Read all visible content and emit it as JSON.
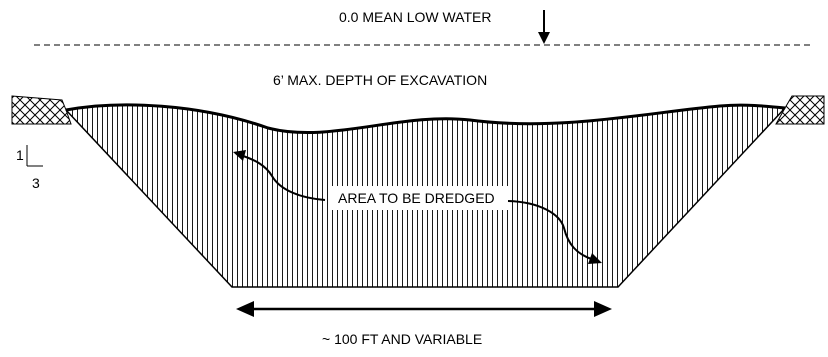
{
  "labels": {
    "mean_low_water": "0.0 MEAN LOW WATER",
    "max_depth": "6’ MAX. DEPTH OF EXCAVATION",
    "area_to_be_dredged": "AREA TO BE DREDGED",
    "width": "~ 100 FT AND VARIABLE",
    "slope_rise": "1",
    "slope_run": "3"
  },
  "colors": {
    "line": "#000000",
    "hatch": "#1a1a1a",
    "background": "#ffffff"
  },
  "icons": {
    "bank_left": "cross-hatch-fill",
    "bank_right": "cross-hatch-fill",
    "water_marker": "down-arrow"
  }
}
